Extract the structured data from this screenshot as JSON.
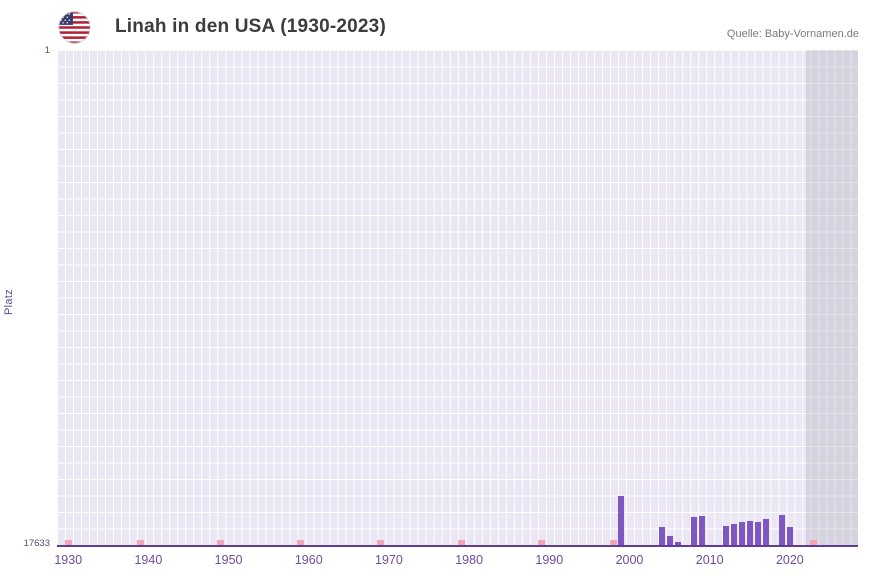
{
  "header": {
    "title": "Linah in den USA (1930-2023)",
    "source": "Quelle: Baby-Vornamen.de",
    "flag_icon": "us-flag-icon"
  },
  "chart_data": {
    "type": "bar",
    "title": "Linah in den USA (1930-2023)",
    "xlabel": "",
    "ylabel": "Platz",
    "grid": "on",
    "legend": "none",
    "y_axis": {
      "min": 1,
      "max": 17633,
      "inverted": true,
      "top_label": "1",
      "bottom_label": "17633"
    },
    "x_range": [
      1928.6,
      2028.5
    ],
    "x_ticks": [
      "1930",
      "1940",
      "1950",
      "1960",
      "1970",
      "1980",
      "1990",
      "2000",
      "2010",
      "2020"
    ],
    "bars": [
      {
        "year": 1999,
        "rank": 15900
      },
      {
        "year": 2004,
        "rank": 17000
      },
      {
        "year": 2005,
        "rank": 17300
      },
      {
        "year": 2006,
        "rank": 17520
      },
      {
        "year": 2008,
        "rank": 16650
      },
      {
        "year": 2009,
        "rank": 16600
      },
      {
        "year": 2012,
        "rank": 16950
      },
      {
        "year": 2013,
        "rank": 16900
      },
      {
        "year": 2014,
        "rank": 16800
      },
      {
        "year": 2015,
        "rank": 16780
      },
      {
        "year": 2016,
        "rank": 16820
      },
      {
        "year": 2017,
        "rank": 16700
      },
      {
        "year": 2019,
        "rank": 16550
      },
      {
        "year": 2020,
        "rank": 17000
      }
    ],
    "rare_years": [
      1930,
      1939,
      1949,
      1959,
      1969,
      1979,
      1989,
      1998,
      2023
    ],
    "no_data_band": {
      "start_year": 2022
    },
    "colors": {
      "bar": "#7e57c2",
      "rare_marker": "#f3a6b2",
      "plot_bg": "#eae6f4",
      "grid": "#ffffff",
      "baseline": "#5e3c99",
      "band": "rgba(168,165,178,0.30)",
      "axis_text": "#6b4e9e",
      "title_text": "#3c3c3c",
      "source_text": "#7a7a7a"
    }
  }
}
